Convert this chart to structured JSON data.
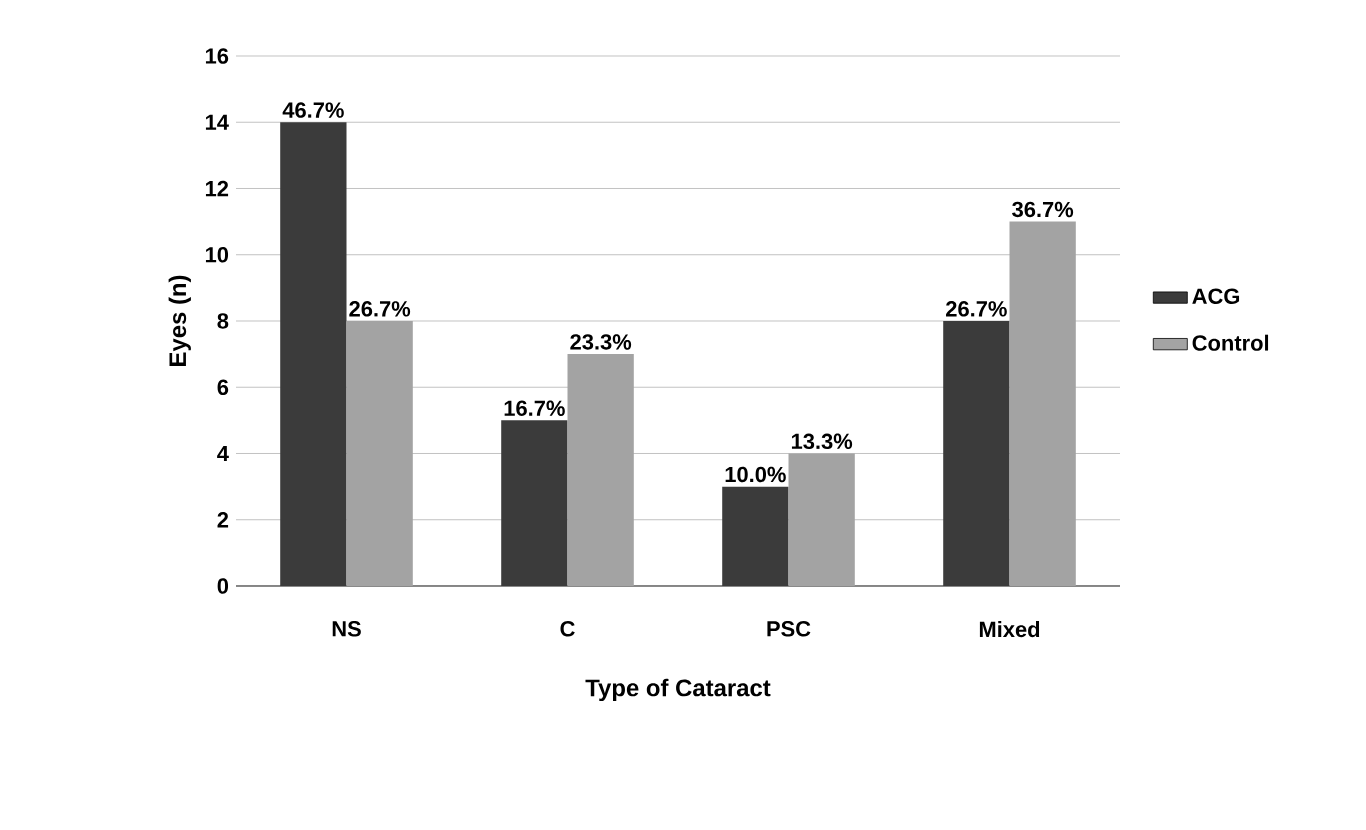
{
  "chart_data": {
    "type": "bar",
    "xlabel": "Type of Cataract",
    "ylabel": "Eyes (n)",
    "categories": [
      "NS",
      "C",
      "PSC",
      "Mixed"
    ],
    "series": [
      {
        "name": "ACG",
        "color": "#3b3b3b",
        "values": [
          14,
          5,
          3,
          8
        ]
      },
      {
        "name": "Control",
        "color": "#a3a3a3",
        "values": [
          8,
          7,
          4,
          11
        ]
      }
    ],
    "annotations": [
      {
        "text": "46.7%",
        "x": "NS",
        "y": 14
      },
      {
        "text": "16.7%",
        "x": "C",
        "y": 5
      },
      {
        "text": "10.0%",
        "x": "PSC",
        "y": 3
      },
      {
        "text": "26.7%",
        "x": "Mixed",
        "y": 8
      },
      {
        "text": "26.7%",
        "x": "NS",
        "y": 8
      },
      {
        "text": "23.3%",
        "x": "C",
        "y": 7
      },
      {
        "text": "13.3%",
        "x": "PSC",
        "y": 4
      },
      {
        "text": "36.7%",
        "x": "Mixed",
        "y": 11
      }
    ],
    "ylim": [
      0,
      16
    ],
    "yticks": [
      0,
      2,
      4,
      6,
      8,
      10,
      12,
      14,
      16
    ],
    "grid": "y",
    "legend": "right"
  }
}
